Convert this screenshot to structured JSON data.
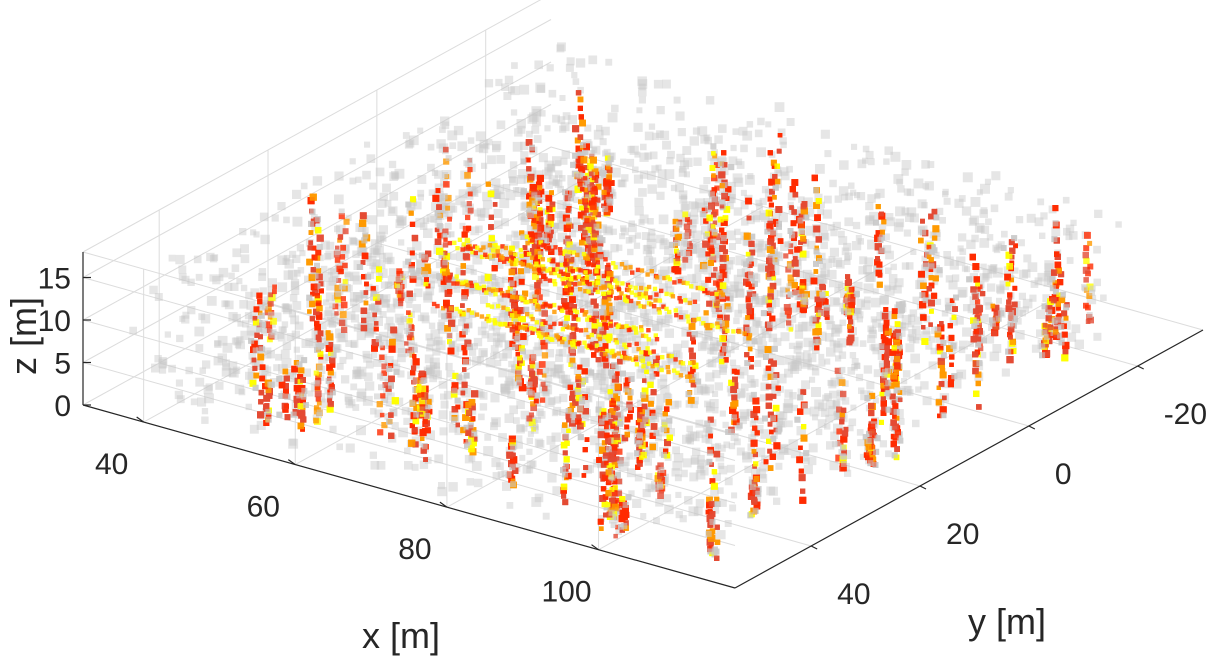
{
  "chart_data": {
    "type": "scatter3d",
    "title": "",
    "xlabel": "x [m]",
    "ylabel": "y [m]",
    "zlabel": "z [m]",
    "xlim": [
      32,
      118
    ],
    "ylim": [
      -32,
      54
    ],
    "zlim": [
      0,
      18
    ],
    "xticks": [
      40,
      60,
      80,
      100
    ],
    "yticks": [
      -20,
      0,
      20,
      40
    ],
    "zticks": [
      0,
      5,
      10,
      15
    ],
    "xtick_labels": [
      "40",
      "60",
      "80",
      "100"
    ],
    "ytick_labels": [
      "-20",
      "0",
      "20",
      "40"
    ],
    "ztick_labels": [
      "0",
      "5",
      "10",
      "15"
    ],
    "grid": true,
    "legend": "none",
    "colormap": [
      "#c8c8c8",
      "#e34a33",
      "#ff2a00",
      "#ff9a00",
      "#ffff00"
    ],
    "colors": {
      "axis": "#262626",
      "grid": "#dcdcdc"
    }
  }
}
